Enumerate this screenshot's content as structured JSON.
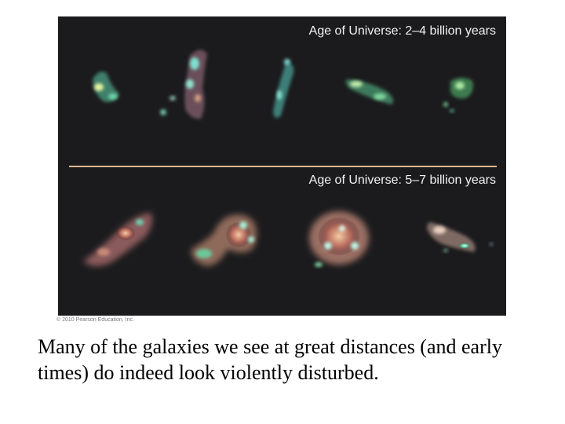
{
  "figure": {
    "top_panel_label": "Age of Universe: 2–4 billion years",
    "bottom_panel_label": "Age of Universe: 5–7 billion years",
    "divider_color": "#e3b98c",
    "background_color": "#1b1b1d"
  },
  "copyright": "© 2010 Pearson Education, Inc.",
  "caption": "Many of the galaxies we see at great distances (and early times) do indeed look violently disturbed."
}
